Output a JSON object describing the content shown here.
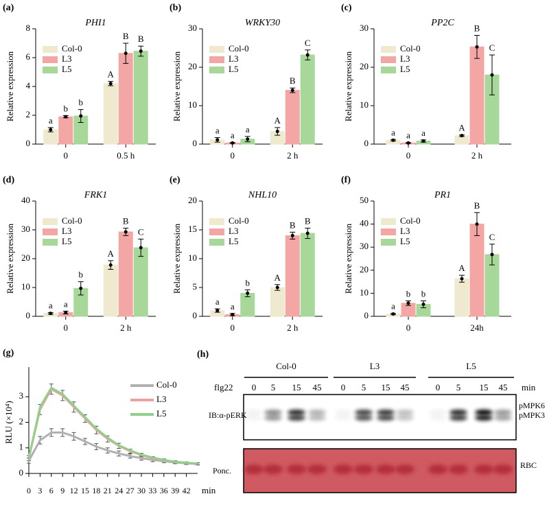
{
  "chart_data": [
    {
      "type": "bar",
      "panel_label": "(a)",
      "title": "PHI1",
      "ylabel": "Relative expression",
      "categories": [
        "0",
        "0.5 h"
      ],
      "series": [
        {
          "name": "Col-0",
          "color": "#efe9cf",
          "values": [
            1.0,
            4.2
          ],
          "errors": [
            0.15,
            0.15
          ],
          "letters": [
            "a",
            "A"
          ]
        },
        {
          "name": "L3",
          "color": "#f4a6a4",
          "values": [
            1.9,
            6.3
          ],
          "errors": [
            0.08,
            0.7
          ],
          "letters": [
            "b",
            "B"
          ]
        },
        {
          "name": "L5",
          "color": "#a8d79a",
          "values": [
            1.95,
            6.45
          ],
          "errors": [
            0.45,
            0.35
          ],
          "letters": [
            "b",
            "B"
          ]
        }
      ],
      "ylim": [
        0,
        8
      ],
      "yticks": [
        0,
        2,
        4,
        6,
        8
      ],
      "legend": "upper left"
    },
    {
      "type": "bar",
      "panel_label": "(b)",
      "title": "WRKY30",
      "ylabel": "Relative expression",
      "categories": [
        "0",
        "2 h"
      ],
      "series": [
        {
          "name": "Col-0",
          "color": "#efe9cf",
          "values": [
            1.1,
            3.3
          ],
          "errors": [
            0.6,
            1.0
          ],
          "letters": [
            "a",
            "A"
          ]
        },
        {
          "name": "L3",
          "color": "#f4a6a4",
          "values": [
            0.3,
            14
          ],
          "errors": [
            0.1,
            0.6
          ],
          "letters": [
            "a",
            "B"
          ]
        },
        {
          "name": "L5",
          "color": "#a8d79a",
          "values": [
            1.3,
            23.2
          ],
          "errors": [
            0.7,
            1.3
          ],
          "letters": [
            "a",
            "C"
          ]
        }
      ],
      "ylim": [
        0,
        30
      ],
      "yticks": [
        0,
        10,
        20,
        30
      ],
      "legend": "upper left"
    },
    {
      "type": "bar",
      "panel_label": "(c)",
      "title": "PP2C",
      "ylabel": "Relative expression",
      "categories": [
        "0",
        "2 h"
      ],
      "series": [
        {
          "name": "Col-0",
          "color": "#efe9cf",
          "values": [
            1.0,
            2.2
          ],
          "errors": [
            0.2,
            0.2
          ],
          "letters": [
            "a",
            "A"
          ]
        },
        {
          "name": "L3",
          "color": "#f4a6a4",
          "values": [
            0.3,
            25.3
          ],
          "errors": [
            0.1,
            3
          ],
          "letters": [
            "a",
            "B"
          ]
        },
        {
          "name": "L5",
          "color": "#a8d79a",
          "values": [
            0.8,
            18
          ],
          "errors": [
            0.3,
            5.2
          ],
          "letters": [
            "a",
            "C"
          ]
        }
      ],
      "ylim": [
        0,
        30
      ],
      "yticks": [
        0,
        10,
        20,
        30
      ],
      "legend": "upper left"
    },
    {
      "type": "bar",
      "panel_label": "(d)",
      "title": "FRK1",
      "ylabel": "Relative expression",
      "categories": [
        "0",
        "2 h"
      ],
      "series": [
        {
          "name": "Col-0",
          "color": "#efe9cf",
          "values": [
            1.0,
            17.8
          ],
          "errors": [
            0.3,
            1.5
          ],
          "letters": [
            "a",
            "A"
          ]
        },
        {
          "name": "L3",
          "color": "#f4a6a4",
          "values": [
            1.3,
            29.3
          ],
          "errors": [
            0.5,
            1.3
          ],
          "letters": [
            "a",
            "B"
          ]
        },
        {
          "name": "L5",
          "color": "#a8d79a",
          "values": [
            9.7,
            23.8
          ],
          "errors": [
            2.3,
            3
          ],
          "letters": [
            "b",
            "C"
          ]
        }
      ],
      "ylim": [
        0,
        40
      ],
      "yticks": [
        0,
        10,
        20,
        30,
        40
      ],
      "legend": "upper left"
    },
    {
      "type": "bar",
      "panel_label": "(e)",
      "title": "NHL10",
      "ylabel": "Relative expression",
      "categories": [
        "0",
        "2 h"
      ],
      "series": [
        {
          "name": "Col-0",
          "color": "#efe9cf",
          "values": [
            1.0,
            5.0
          ],
          "errors": [
            0.3,
            0.5
          ],
          "letters": [
            "a",
            "A"
          ]
        },
        {
          "name": "L3",
          "color": "#f4a6a4",
          "values": [
            0.3,
            14
          ],
          "errors": [
            0.2,
            0.6
          ],
          "letters": [
            "a",
            "B"
          ]
        },
        {
          "name": "L5",
          "color": "#a8d79a",
          "values": [
            4.0,
            14.4
          ],
          "errors": [
            0.6,
            0.9
          ],
          "letters": [
            "b",
            "B"
          ]
        }
      ],
      "ylim": [
        0,
        20
      ],
      "yticks": [
        0,
        5,
        10,
        15,
        20
      ],
      "legend": "upper left"
    },
    {
      "type": "bar",
      "panel_label": "(f)",
      "title": "PR1",
      "ylabel": "Relative expression",
      "categories": [
        "0",
        "24h"
      ],
      "series": [
        {
          "name": "Col-0",
          "color": "#efe9cf",
          "values": [
            1.0,
            16.3
          ],
          "errors": [
            0.3,
            1.5
          ],
          "letters": [
            "a",
            "A"
          ]
        },
        {
          "name": "L3",
          "color": "#f4a6a4",
          "values": [
            5.7,
            40
          ],
          "errors": [
            1,
            5
          ],
          "letters": [
            "b",
            "B"
          ]
        },
        {
          "name": "L5",
          "color": "#a8d79a",
          "values": [
            5.2,
            26.8
          ],
          "errors": [
            1.5,
            4.5
          ],
          "letters": [
            "b",
            "C"
          ]
        }
      ],
      "ylim": [
        0,
        50
      ],
      "yticks": [
        0,
        10,
        20,
        30,
        40,
        50
      ],
      "legend": "upper left"
    },
    {
      "type": "line",
      "panel_label": "(g)",
      "ylabel": "RLU (×10⁴)",
      "xlabel": "min",
      "x": [
        0,
        3,
        6,
        9,
        12,
        15,
        18,
        21,
        24,
        27,
        30,
        33,
        36,
        39,
        42,
        45
      ],
      "series": [
        {
          "name": "Col-0",
          "color": "#b0b0b0",
          "values": [
            0.5,
            1.3,
            1.6,
            1.6,
            1.45,
            1.25,
            1.05,
            0.9,
            0.78,
            0.68,
            0.6,
            0.53,
            0.48,
            0.43,
            0.4,
            0.37
          ],
          "errors": [
            0.1,
            0.15,
            0.15,
            0.15,
            0.15,
            0.12,
            0.12,
            0.1,
            0.1,
            0.08,
            0.08,
            0.07,
            0.06,
            0.05,
            0.05,
            0.04
          ]
        },
        {
          "name": "L3",
          "color": "#f0a0a0",
          "values": [
            0.6,
            2.5,
            3.3,
            3.05,
            2.6,
            2.15,
            1.7,
            1.35,
            1.08,
            0.87,
            0.72,
            0.6,
            0.52,
            0.45,
            0.41,
            0.38
          ],
          "errors": [
            0.1,
            0.2,
            0.2,
            0.2,
            0.2,
            0.15,
            0.15,
            0.12,
            0.1,
            0.08,
            0.07,
            0.06,
            0.05,
            0.05,
            0.04,
            0.04
          ]
        },
        {
          "name": "L5",
          "color": "#8fd08a",
          "values": [
            0.6,
            2.6,
            3.35,
            3.1,
            2.65,
            2.2,
            1.75,
            1.4,
            1.1,
            0.9,
            0.74,
            0.62,
            0.53,
            0.46,
            0.42,
            0.38
          ]
        }
      ],
      "xlim": [
        0,
        45
      ],
      "xticks": [
        0,
        3,
        6,
        9,
        12,
        15,
        18,
        21,
        24,
        27,
        30,
        33,
        36,
        39,
        42
      ],
      "ylim": [
        0,
        4
      ],
      "yticks": [
        0,
        1,
        2,
        3
      ],
      "legend": "upper right"
    }
  ],
  "blot": {
    "panel_label": "(h)",
    "groups": [
      "Col-0",
      "L3",
      "L5"
    ],
    "treatment": "flg22",
    "times": [
      "0",
      "5",
      "15",
      "45"
    ],
    "time_unit": "min",
    "antibody": "IB:α-pERK",
    "bands": [
      "pMPK6",
      "pMPK3"
    ],
    "loading": "Ponc.",
    "loading_band": "RBC"
  }
}
